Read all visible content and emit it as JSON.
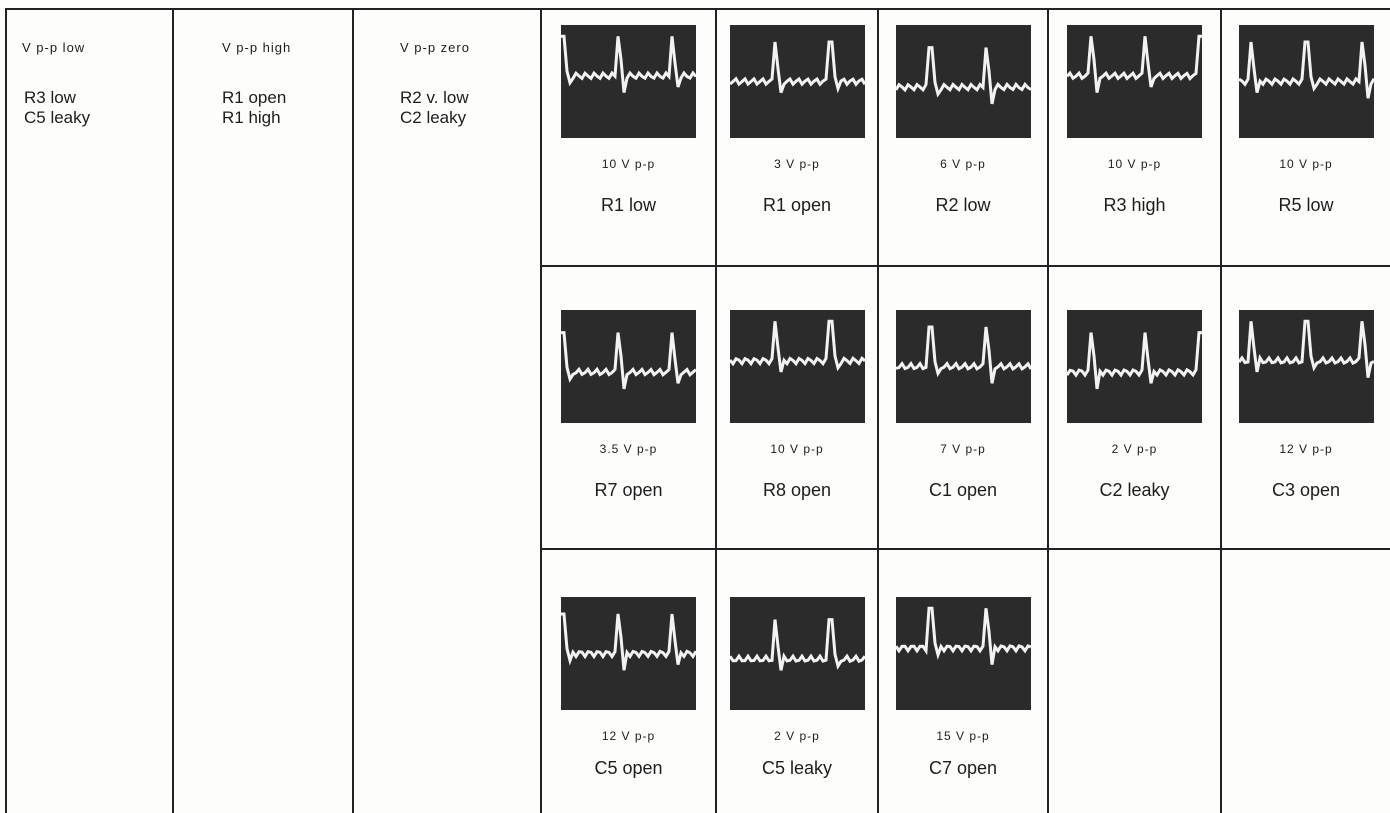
{
  "columns": [
    {
      "header": "V p-p low",
      "items": [
        "R3 low",
        "C5 leaky"
      ]
    },
    {
      "header": "V p-p high",
      "items": [
        "R1 open",
        "R1 high"
      ]
    },
    {
      "header": "V p-p zero",
      "items": [
        "R2 v. low",
        "C2 leaky"
      ]
    }
  ],
  "waveforms": [
    [
      {
        "amplitude": "10 V p-p",
        "fault": "R1 low"
      },
      {
        "amplitude": "3 V p-p",
        "fault": "R1 open"
      },
      {
        "amplitude": "6 V p-p",
        "fault": "R2 low"
      },
      {
        "amplitude": "10 V p-p",
        "fault": "R3 high"
      },
      {
        "amplitude": "10 V p-p",
        "fault": "R5 low"
      }
    ],
    [
      {
        "amplitude": "3.5 V p-p",
        "fault": "R7 open"
      },
      {
        "amplitude": "10 V p-p",
        "fault": "R8 open"
      },
      {
        "amplitude": "7 V p-p",
        "fault": "C1 open"
      },
      {
        "amplitude": "2 V p-p",
        "fault": "C2 leaky"
      },
      {
        "amplitude": "12 V p-p",
        "fault": "C3 open"
      }
    ],
    [
      {
        "amplitude": "12 V p-p",
        "fault": "C5 open"
      },
      {
        "amplitude": "2 V p-p",
        "fault": "C5 leaky"
      },
      {
        "amplitude": "15 V p-p",
        "fault": "C7 open"
      }
    ]
  ]
}
